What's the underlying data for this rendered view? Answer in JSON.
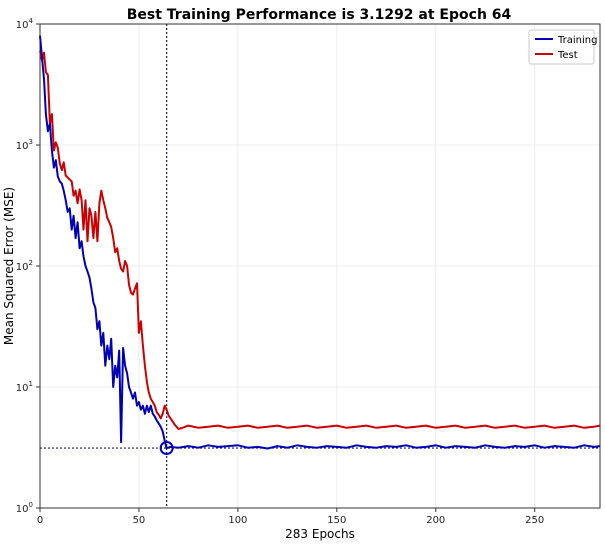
{
  "chart_data": {
    "type": "line",
    "title": "Best Training Performance is 3.1292 at Epoch 64",
    "xlabel": "283 Epochs",
    "ylabel": "Mean Squared Error (MSE)",
    "xlim": [
      0,
      283
    ],
    "ylim": [
      1,
      10000
    ],
    "yscale": "log",
    "grid": true,
    "legend_position": "top-right",
    "x_ticks": [
      0,
      50,
      100,
      150,
      200,
      250
    ],
    "y_ticks": [
      {
        "value": 1,
        "base": "10",
        "exp": "0"
      },
      {
        "value": 10,
        "base": "10",
        "exp": "1"
      },
      {
        "value": 100,
        "base": "10",
        "exp": "2"
      },
      {
        "value": 1000,
        "base": "10",
        "exp": "3"
      },
      {
        "value": 10000,
        "base": "10",
        "exp": "4"
      }
    ],
    "best": {
      "epoch": 64,
      "value": 3.1292
    },
    "series": [
      {
        "name": "Training",
        "color": "#0000b4",
        "points": [
          [
            0,
            8000
          ],
          [
            2,
            3500
          ],
          [
            3,
            1800
          ],
          [
            4,
            1300
          ],
          [
            5,
            1500
          ],
          [
            6,
            900
          ],
          [
            7,
            650
          ],
          [
            8,
            750
          ],
          [
            9,
            550
          ],
          [
            10,
            500
          ],
          [
            11,
            480
          ],
          [
            12,
            420
          ],
          [
            13,
            350
          ],
          [
            14,
            280
          ],
          [
            15,
            300
          ],
          [
            16,
            200
          ],
          [
            17,
            260
          ],
          [
            18,
            170
          ],
          [
            19,
            230
          ],
          [
            20,
            140
          ],
          [
            21,
            160
          ],
          [
            22,
            120
          ],
          [
            23,
            100
          ],
          [
            24,
            90
          ],
          [
            25,
            80
          ],
          [
            26,
            65
          ],
          [
            27,
            50
          ],
          [
            28,
            45
          ],
          [
            29,
            30
          ],
          [
            30,
            35
          ],
          [
            31,
            22
          ],
          [
            32,
            28
          ],
          [
            33,
            15
          ],
          [
            34,
            22
          ],
          [
            35,
            17
          ],
          [
            36,
            25
          ],
          [
            37,
            10
          ],
          [
            38,
            15
          ],
          [
            39,
            12
          ],
          [
            40,
            20
          ],
          [
            41,
            3.5
          ],
          [
            42,
            21
          ],
          [
            43,
            15
          ],
          [
            44,
            13
          ],
          [
            45,
            10
          ],
          [
            46,
            9
          ],
          [
            47,
            8
          ],
          [
            48,
            9
          ],
          [
            49,
            7
          ],
          [
            50,
            7.5
          ],
          [
            51,
            6.5
          ],
          [
            52,
            7
          ],
          [
            53,
            6
          ],
          [
            54,
            7
          ],
          [
            55,
            6.2
          ],
          [
            56,
            7
          ],
          [
            57,
            6
          ],
          [
            58,
            5.7
          ],
          [
            59,
            5.3
          ],
          [
            60,
            5
          ],
          [
            61,
            4.7
          ],
          [
            62,
            4.3
          ],
          [
            63,
            3.6
          ],
          [
            64,
            3.1292
          ],
          [
            66,
            3.2
          ],
          [
            70,
            3.15
          ],
          [
            75,
            3.25
          ],
          [
            80,
            3.15
          ],
          [
            85,
            3.3
          ],
          [
            90,
            3.2
          ],
          [
            95,
            3.25
          ],
          [
            100,
            3.3
          ],
          [
            105,
            3.15
          ],
          [
            110,
            3.2
          ],
          [
            115,
            3.1
          ],
          [
            120,
            3.25
          ],
          [
            125,
            3.15
          ],
          [
            130,
            3.3
          ],
          [
            135,
            3.2
          ],
          [
            140,
            3.15
          ],
          [
            145,
            3.25
          ],
          [
            150,
            3.2
          ],
          [
            155,
            3.15
          ],
          [
            160,
            3.3
          ],
          [
            165,
            3.2
          ],
          [
            170,
            3.15
          ],
          [
            175,
            3.25
          ],
          [
            180,
            3.2
          ],
          [
            185,
            3.3
          ],
          [
            190,
            3.15
          ],
          [
            195,
            3.2
          ],
          [
            200,
            3.3
          ],
          [
            205,
            3.15
          ],
          [
            210,
            3.25
          ],
          [
            215,
            3.2
          ],
          [
            220,
            3.15
          ],
          [
            225,
            3.3
          ],
          [
            230,
            3.2
          ],
          [
            235,
            3.15
          ],
          [
            240,
            3.25
          ],
          [
            245,
            3.2
          ],
          [
            250,
            3.3
          ],
          [
            255,
            3.15
          ],
          [
            260,
            3.25
          ],
          [
            265,
            3.2
          ],
          [
            270,
            3.15
          ],
          [
            275,
            3.3
          ],
          [
            280,
            3.2
          ],
          [
            283,
            3.25
          ]
        ]
      },
      {
        "name": "Test",
        "color": "#cc0000",
        "points": [
          [
            0,
            6000
          ],
          [
            1,
            5000
          ],
          [
            2,
            5800
          ],
          [
            3,
            4000
          ],
          [
            4,
            3800
          ],
          [
            5,
            1500
          ],
          [
            6,
            1800
          ],
          [
            7,
            900
          ],
          [
            8,
            1050
          ],
          [
            9,
            950
          ],
          [
            10,
            700
          ],
          [
            11,
            620
          ],
          [
            12,
            720
          ],
          [
            13,
            560
          ],
          [
            14,
            540
          ],
          [
            15,
            520
          ],
          [
            16,
            500
          ],
          [
            17,
            380
          ],
          [
            18,
            420
          ],
          [
            19,
            330
          ],
          [
            20,
            430
          ],
          [
            21,
            350
          ],
          [
            22,
            200
          ],
          [
            23,
            350
          ],
          [
            24,
            160
          ],
          [
            25,
            300
          ],
          [
            26,
            260
          ],
          [
            27,
            170
          ],
          [
            28,
            280
          ],
          [
            29,
            160
          ],
          [
            30,
            330
          ],
          [
            31,
            420
          ],
          [
            32,
            350
          ],
          [
            33,
            300
          ],
          [
            34,
            250
          ],
          [
            35,
            230
          ],
          [
            36,
            210
          ],
          [
            37,
            170
          ],
          [
            38,
            130
          ],
          [
            39,
            140
          ],
          [
            40,
            110
          ],
          [
            41,
            95
          ],
          [
            42,
            90
          ],
          [
            43,
            110
          ],
          [
            44,
            100
          ],
          [
            45,
            70
          ],
          [
            46,
            60
          ],
          [
            47,
            58
          ],
          [
            48,
            65
          ],
          [
            49,
            72
          ],
          [
            50,
            28
          ],
          [
            51,
            35
          ],
          [
            52,
            22
          ],
          [
            53,
            15
          ],
          [
            54,
            11
          ],
          [
            55,
            9
          ],
          [
            56,
            8
          ],
          [
            57,
            7.5
          ],
          [
            58,
            7
          ],
          [
            59,
            6.2
          ],
          [
            60,
            5.9
          ],
          [
            61,
            5.5
          ],
          [
            62,
            6
          ],
          [
            63,
            7
          ],
          [
            64,
            6.5
          ],
          [
            65,
            5.8
          ],
          [
            66,
            5.5
          ],
          [
            68,
            4.9
          ],
          [
            70,
            4.5
          ],
          [
            72,
            4.6
          ],
          [
            75,
            4.8
          ],
          [
            80,
            4.6
          ],
          [
            85,
            4.7
          ],
          [
            90,
            4.8
          ],
          [
            95,
            4.6
          ],
          [
            100,
            4.7
          ],
          [
            105,
            4.8
          ],
          [
            110,
            4.6
          ],
          [
            115,
            4.7
          ],
          [
            120,
            4.8
          ],
          [
            125,
            4.6
          ],
          [
            130,
            4.7
          ],
          [
            135,
            4.8
          ],
          [
            140,
            4.6
          ],
          [
            145,
            4.7
          ],
          [
            150,
            4.8
          ],
          [
            155,
            4.6
          ],
          [
            160,
            4.7
          ],
          [
            165,
            4.8
          ],
          [
            170,
            4.6
          ],
          [
            175,
            4.7
          ],
          [
            180,
            4.8
          ],
          [
            185,
            4.6
          ],
          [
            190,
            4.7
          ],
          [
            195,
            4.8
          ],
          [
            200,
            4.6
          ],
          [
            205,
            4.7
          ],
          [
            210,
            4.8
          ],
          [
            215,
            4.6
          ],
          [
            220,
            4.7
          ],
          [
            225,
            4.8
          ],
          [
            230,
            4.6
          ],
          [
            235,
            4.7
          ],
          [
            240,
            4.8
          ],
          [
            245,
            4.6
          ],
          [
            250,
            4.7
          ],
          [
            255,
            4.8
          ],
          [
            260,
            4.6
          ],
          [
            265,
            4.7
          ],
          [
            270,
            4.8
          ],
          [
            275,
            4.6
          ],
          [
            280,
            4.7
          ],
          [
            283,
            4.8
          ]
        ]
      }
    ]
  }
}
